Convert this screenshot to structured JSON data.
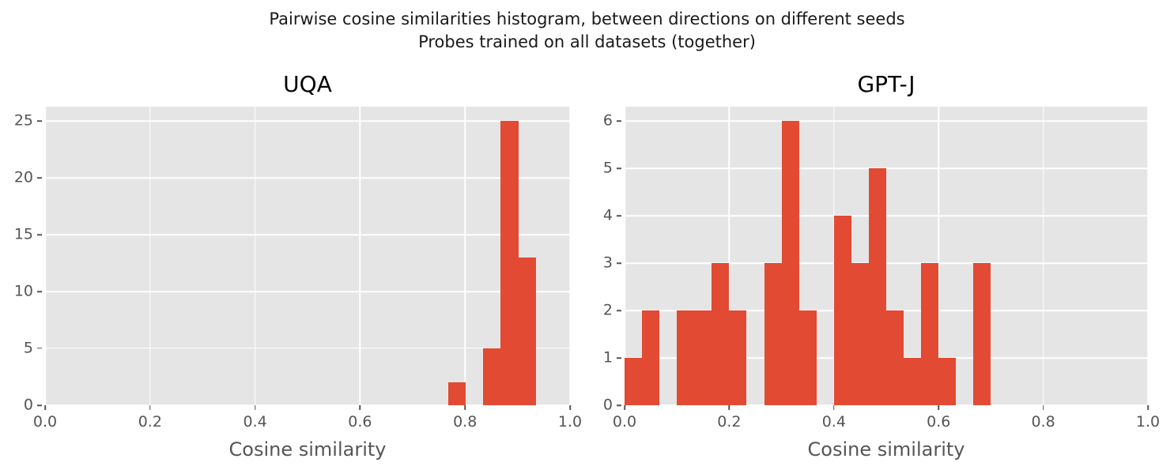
{
  "suptitle": {
    "line1": "Pairwise cosine similarities histogram, between directions on different seeds",
    "line2": "Probes trained on all datasets (together)"
  },
  "colors": {
    "bar": "#E24A33",
    "axes_background": "#E5E5E5",
    "grid": "#FFFFFF",
    "tick_text": "#555555",
    "title_text": "#000000",
    "figure_background": "#FFFFFF"
  },
  "chart_data": [
    {
      "type": "histogram",
      "title": "UQA",
      "xlabel": "Cosine similarity",
      "bin_edges": [
        0.768,
        0.8014,
        0.8348,
        0.8682,
        0.9016,
        0.935
      ],
      "counts": [
        2,
        0,
        5,
        25,
        13
      ],
      "xlim": [
        0.0,
        1.0
      ],
      "ylim": [
        0,
        26.25
      ],
      "xticks": [
        0.0,
        0.2,
        0.4,
        0.6,
        0.8,
        1.0
      ],
      "xtick_labels": [
        "0.0",
        "0.2",
        "0.4",
        "0.6",
        "0.8",
        "1.0"
      ],
      "yticks": [
        0,
        5,
        10,
        15,
        20,
        25
      ],
      "ytick_labels": [
        "0",
        "5",
        "10",
        "15",
        "20",
        "25"
      ],
      "grid": true,
      "legend": false
    },
    {
      "type": "histogram",
      "title": "GPT-J",
      "xlabel": "Cosine similarity",
      "bin_edges": [
        0.0,
        0.0333,
        0.0667,
        0.1,
        0.1333,
        0.1667,
        0.2,
        0.2333,
        0.2667,
        0.3,
        0.3333,
        0.3667,
        0.4,
        0.4333,
        0.4667,
        0.5,
        0.5333,
        0.5667,
        0.6,
        0.6333,
        0.6667,
        0.7
      ],
      "counts": [
        1,
        2,
        0,
        2,
        2,
        3,
        2,
        0,
        3,
        6,
        2,
        0,
        4,
        3,
        5,
        2,
        1,
        3,
        1,
        0,
        3
      ],
      "xlim": [
        0.0,
        1.0
      ],
      "ylim": [
        0,
        6.3
      ],
      "xticks": [
        0.0,
        0.2,
        0.4,
        0.6,
        0.8,
        1.0
      ],
      "xtick_labels": [
        "0.0",
        "0.2",
        "0.4",
        "0.6",
        "0.8",
        "1.0"
      ],
      "yticks": [
        0,
        1,
        2,
        3,
        4,
        5,
        6
      ],
      "ytick_labels": [
        "0",
        "1",
        "2",
        "3",
        "4",
        "5",
        "6"
      ],
      "grid": true,
      "legend": false
    }
  ]
}
